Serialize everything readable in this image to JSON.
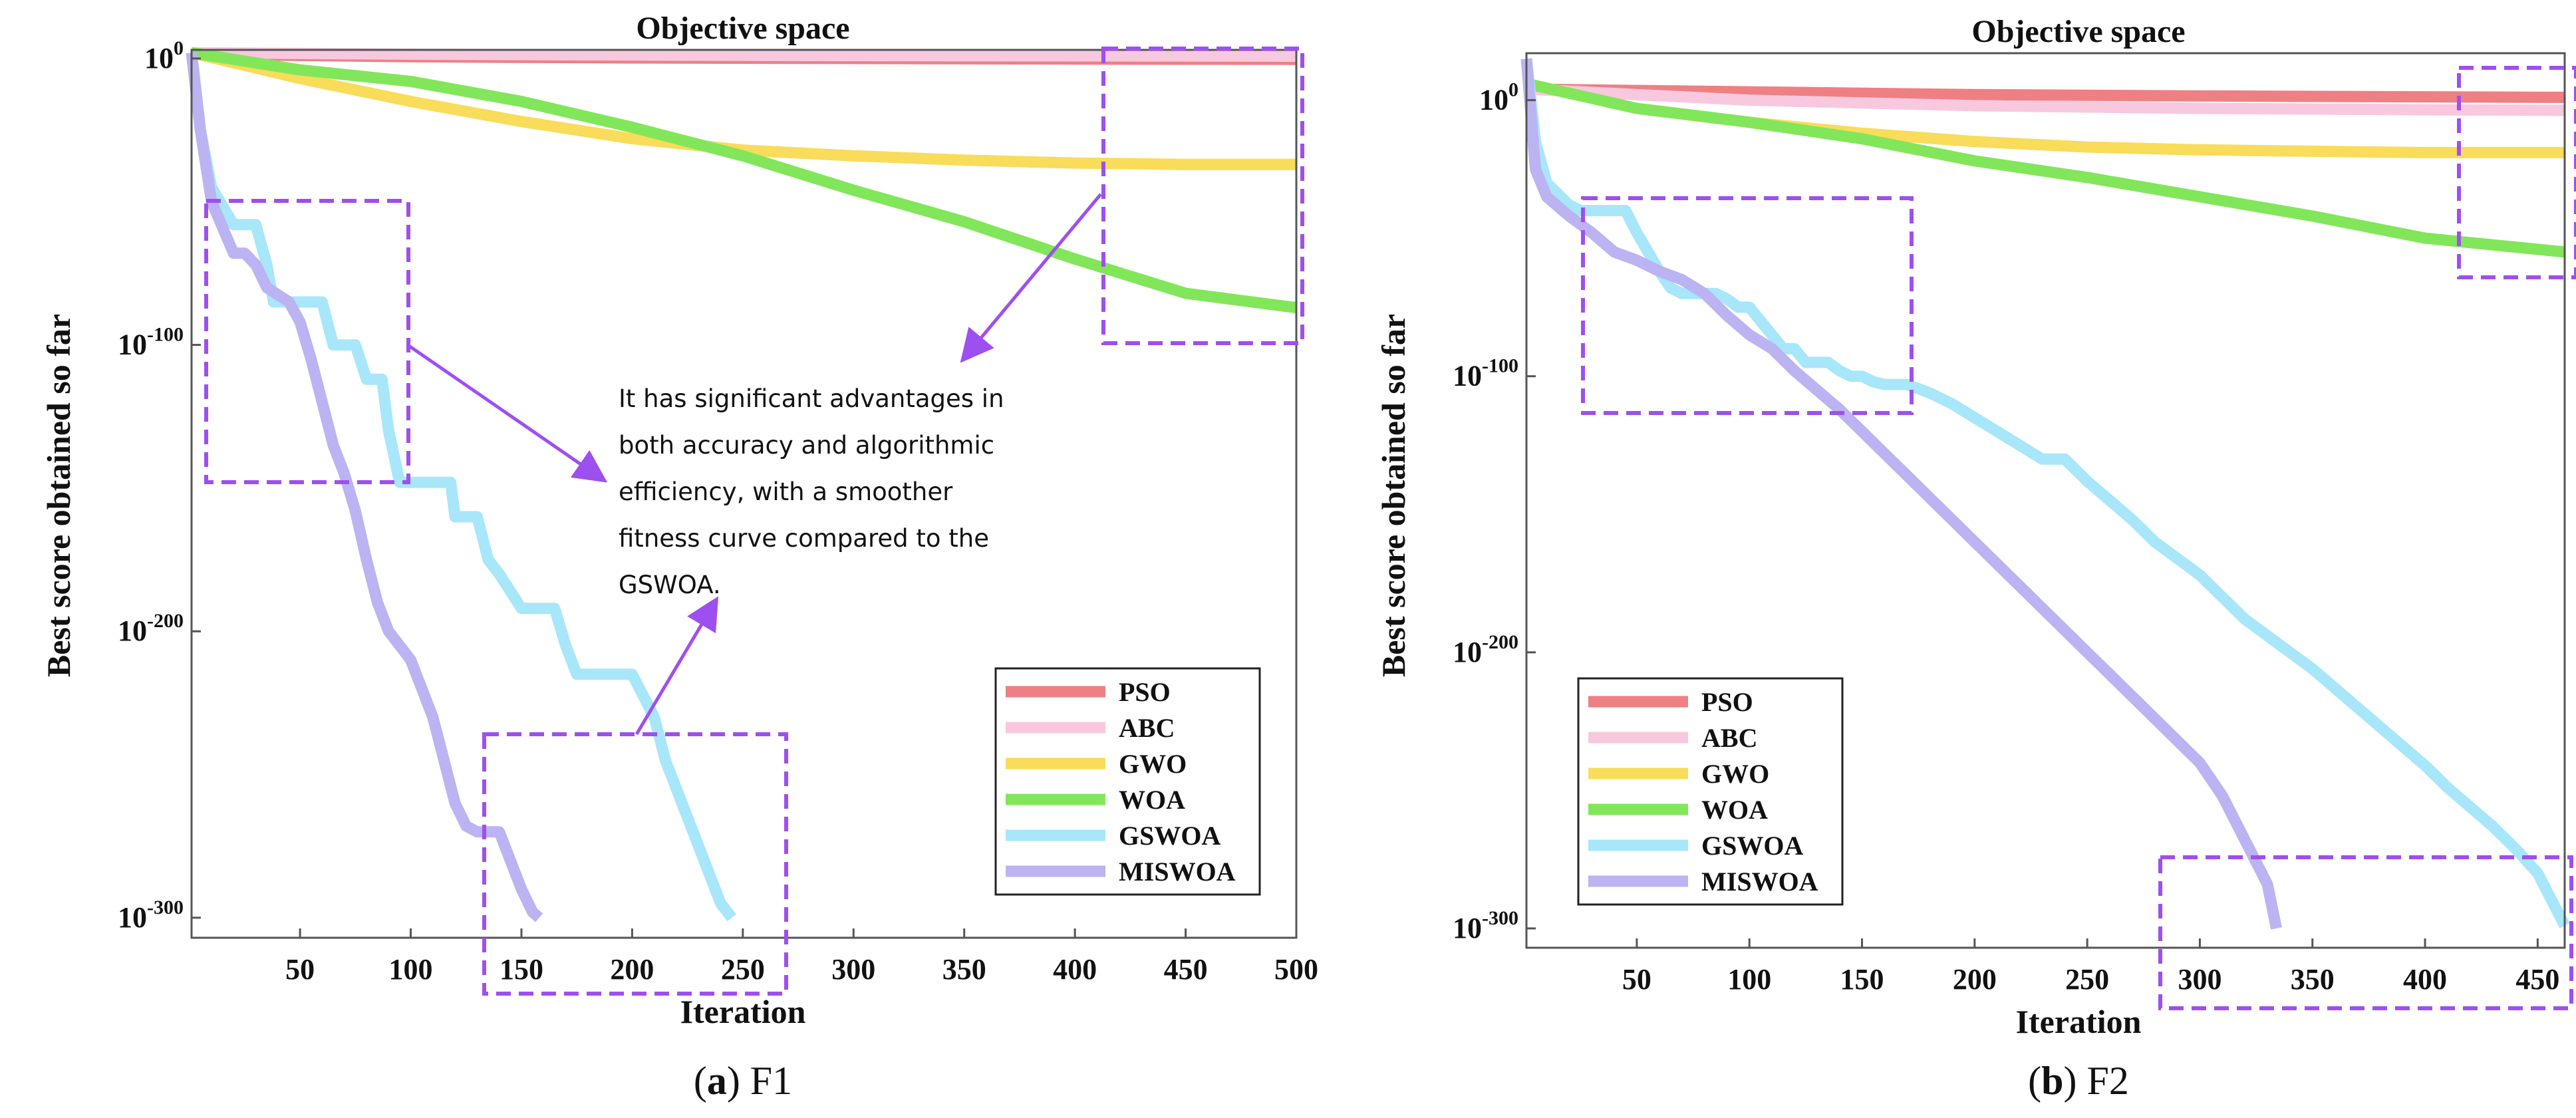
{
  "figure": {
    "annotation": [
      "It has significant advantages in",
      "both accuracy and algorithmic",
      "efficiency, with a smoother",
      "fitness curve compared to the",
      "GSWOA."
    ]
  },
  "chart_data": [
    {
      "type": "line",
      "id": "a",
      "title": "Objective space",
      "xlabel": "Iteration",
      "ylabel": "Best score obtained so far",
      "caption_letter": "a",
      "caption_text": "F1",
      "yscale": "log10",
      "xlim": [
        1,
        500
      ],
      "ylim_log10": [
        -307,
        3
      ],
      "xticks": [
        50,
        100,
        150,
        200,
        250,
        300,
        350,
        400,
        450,
        500
      ],
      "yticks_log10": [
        0,
        -100,
        -200,
        -300
      ],
      "yticklabels": [
        "10^0",
        "10^-100",
        "10^-200",
        "10^-300"
      ],
      "legend_position": "lower-right",
      "series": [
        {
          "name": "PSO",
          "color": "#ee7f83",
          "x": [
            1,
            100,
            200,
            300,
            400,
            500
          ],
          "log10_y": [
            1.5,
            0.6,
            0.2,
            0,
            -0.2,
            -0.3
          ]
        },
        {
          "name": "ABC",
          "color": "#f8c8de",
          "x": [
            1,
            100,
            200,
            300,
            400,
            500
          ],
          "log10_y": [
            2,
            1.5,
            1.2,
            1,
            0.9,
            0.8
          ]
        },
        {
          "name": "GWO",
          "color": "#f8dc5a",
          "x": [
            1,
            50,
            100,
            150,
            200,
            250,
            300,
            350,
            400,
            450,
            500
          ],
          "log10_y": [
            2,
            -7,
            -15,
            -22,
            -28,
            -32,
            -34,
            -35.5,
            -36.5,
            -37,
            -37
          ]
        },
        {
          "name": "WOA",
          "color": "#82e65a",
          "x": [
            1,
            50,
            100,
            150,
            200,
            250,
            300,
            350,
            400,
            450,
            500
          ],
          "log10_y": [
            2,
            -4,
            -8,
            -15,
            -24,
            -34,
            -46,
            -57,
            -70,
            -82,
            -87
          ]
        },
        {
          "name": "GSWOA",
          "color": "#a8e6fa",
          "x": [
            1,
            5,
            10,
            20,
            25,
            30,
            35,
            38,
            45,
            55,
            60,
            65,
            70,
            75,
            80,
            87,
            90,
            95,
            100,
            105,
            110,
            118,
            120,
            125,
            130,
            135,
            140,
            150,
            160,
            165,
            170,
            175,
            180,
            185,
            195,
            200,
            210,
            215,
            220,
            225,
            230,
            235,
            240,
            245
          ],
          "log10_y": [
            2,
            -25,
            -45,
            -58,
            -58,
            -58,
            -72,
            -85,
            -85,
            -85,
            -85,
            -100,
            -100,
            -100,
            -112,
            -112,
            -130,
            -148,
            -148,
            -148,
            -148,
            -148,
            -160,
            -160,
            -160,
            -175,
            -180,
            -192,
            -192,
            -192,
            -205,
            -215,
            -215,
            -215,
            -215,
            -215,
            -230,
            -245,
            -255,
            -265,
            -275,
            -285,
            -295,
            -300
          ]
        },
        {
          "name": "MISWOA",
          "color": "#bcb3f2",
          "x": [
            1,
            5,
            10,
            20,
            25,
            30,
            35,
            45,
            50,
            55,
            60,
            65,
            70,
            75,
            80,
            85,
            90,
            95,
            100,
            110,
            115,
            120,
            125,
            130,
            135,
            140,
            145,
            150,
            155,
            158
          ],
          "log10_y": [
            2,
            -25,
            -50,
            -68,
            -68,
            -72,
            -80,
            -85,
            -92,
            -105,
            -120,
            -135,
            -145,
            -158,
            -175,
            -190,
            -200,
            -205,
            -210,
            -230,
            -245,
            -260,
            -268,
            -270,
            -270,
            -270,
            -280,
            -290,
            -298,
            -300
          ]
        }
      ]
    },
    {
      "type": "line",
      "id": "b",
      "title": "Objective space",
      "xlabel": "Iteration",
      "ylabel": "Best score obtained so far",
      "caption_letter": "b",
      "caption_text": "F2",
      "yscale": "log10",
      "xlim": [
        1,
        462
      ],
      "ylim_log10": [
        -307,
        17
      ],
      "xticks": [
        50,
        100,
        150,
        200,
        250,
        300,
        350,
        400,
        450
      ],
      "yticks_log10": [
        0,
        -100,
        -200,
        -300
      ],
      "yticklabels": [
        "10^0",
        "10^-100",
        "10^-200",
        "10^-300"
      ],
      "legend_position": "lower-left",
      "series": [
        {
          "name": "PSO",
          "color": "#ee7f83",
          "x": [
            1,
            100,
            200,
            300,
            400,
            462
          ],
          "log10_y": [
            4,
            3,
            2,
            1.5,
            1.2,
            1
          ]
        },
        {
          "name": "ABC",
          "color": "#f8c8de",
          "x": [
            1,
            100,
            200,
            300,
            400,
            462
          ],
          "log10_y": [
            4,
            0,
            -2,
            -3,
            -3.5,
            -3.7
          ]
        },
        {
          "name": "GWO",
          "color": "#f8dc5a",
          "x": [
            1,
            50,
            100,
            150,
            200,
            250,
            300,
            350,
            400,
            462
          ],
          "log10_y": [
            6,
            -3,
            -8,
            -12,
            -15,
            -17,
            -18,
            -18.5,
            -19,
            -19
          ]
        },
        {
          "name": "WOA",
          "color": "#82e65a",
          "x": [
            1,
            50,
            100,
            150,
            200,
            250,
            300,
            350,
            400,
            462
          ],
          "log10_y": [
            6,
            -3,
            -8,
            -14,
            -22,
            -28,
            -35,
            -42,
            -50,
            -55
          ]
        },
        {
          "name": "GSWOA",
          "color": "#a8e6fa",
          "x": [
            1,
            5,
            10,
            20,
            25,
            30,
            35,
            40,
            45,
            50,
            55,
            60,
            65,
            70,
            75,
            80,
            85,
            90,
            95,
            100,
            105,
            110,
            115,
            120,
            125,
            130,
            135,
            140,
            145,
            150,
            155,
            160,
            170,
            180,
            190,
            200,
            210,
            220,
            230,
            240,
            250,
            260,
            270,
            280,
            290,
            300,
            310,
            320,
            330,
            340,
            350,
            360,
            370,
            380,
            390,
            400,
            410,
            420,
            430,
            440,
            450,
            462
          ],
          "log10_y": [
            15,
            -15,
            -30,
            -38,
            -40,
            -40,
            -40,
            -40,
            -40,
            -48,
            -55,
            -62,
            -68,
            -70,
            -70,
            -70,
            -70,
            -72,
            -75,
            -75,
            -80,
            -85,
            -90,
            -90,
            -95,
            -95,
            -95,
            -98,
            -100,
            -100,
            -102,
            -103,
            -103,
            -106,
            -110,
            -115,
            -120,
            -125,
            -130,
            -130,
            -138,
            -145,
            -152,
            -160,
            -166,
            -172,
            -180,
            -188,
            -194,
            -200,
            -206,
            -213,
            -220,
            -227,
            -234,
            -241,
            -249,
            -256,
            -263,
            -271,
            -280,
            -299
          ]
        },
        {
          "name": "MISWOA",
          "color": "#bcb3f2",
          "x": [
            1,
            5,
            10,
            20,
            30,
            40,
            50,
            60,
            70,
            80,
            90,
            100,
            110,
            120,
            130,
            140,
            150,
            160,
            170,
            180,
            190,
            200,
            210,
            220,
            230,
            240,
            250,
            260,
            270,
            280,
            290,
            300,
            310,
            320,
            330,
            334
          ],
          "log10_y": [
            15,
            -25,
            -35,
            -42,
            -48,
            -55,
            -58,
            -62,
            -65,
            -70,
            -78,
            -85,
            -90,
            -98,
            -105,
            -112,
            -120,
            -128,
            -136,
            -144,
            -152,
            -160,
            -168,
            -176,
            -184,
            -192,
            -200,
            -208,
            -216,
            -224,
            -232,
            -240,
            -252,
            -268,
            -284,
            -300
          ]
        }
      ]
    }
  ]
}
